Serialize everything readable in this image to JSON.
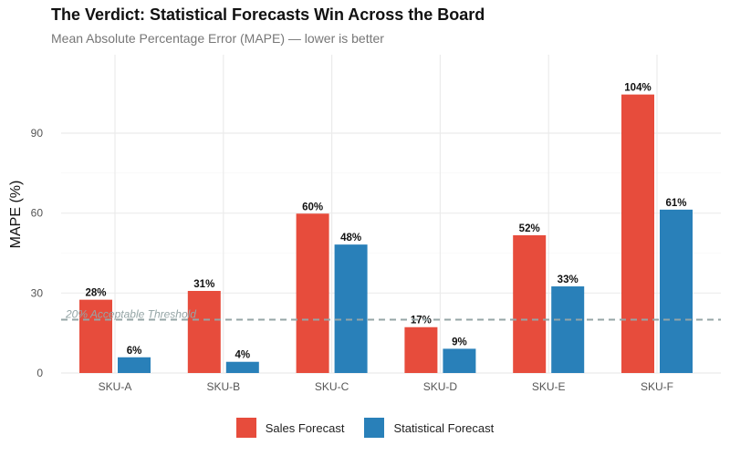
{
  "chart_data": {
    "type": "bar",
    "title": "The Verdict: Statistical Forecasts Win Across the Board",
    "subtitle": "Mean Absolute Percentage Error (MAPE) — lower is better",
    "xlabel": "",
    "ylabel": "MAPE (%)",
    "ylim": [
      0,
      120
    ],
    "yticks": [
      0,
      30,
      60,
      90
    ],
    "grid": true,
    "legend_position": "bottom",
    "categories": [
      "SKU-A",
      "SKU-B",
      "SKU-C",
      "SKU-D",
      "SKU-E",
      "SKU-F"
    ],
    "series": [
      {
        "name": "Sales Forecast",
        "color": "#E74C3C",
        "values": [
          27.5,
          30.8,
          59.8,
          17.2,
          51.7,
          104.5
        ],
        "labels": [
          "28%",
          "31%",
          "60%",
          "17%",
          "52%",
          "104%"
        ]
      },
      {
        "name": "Statistical Forecast",
        "color": "#2980B9",
        "values": [
          5.9,
          4.2,
          48.2,
          9.1,
          32.5,
          61.3
        ],
        "labels": [
          "6%",
          "4%",
          "48%",
          "9%",
          "33%",
          "61%"
        ]
      }
    ],
    "reference_line": {
      "value": 20,
      "label": "20% Acceptable Threshold",
      "color": "#95A5A6"
    }
  }
}
